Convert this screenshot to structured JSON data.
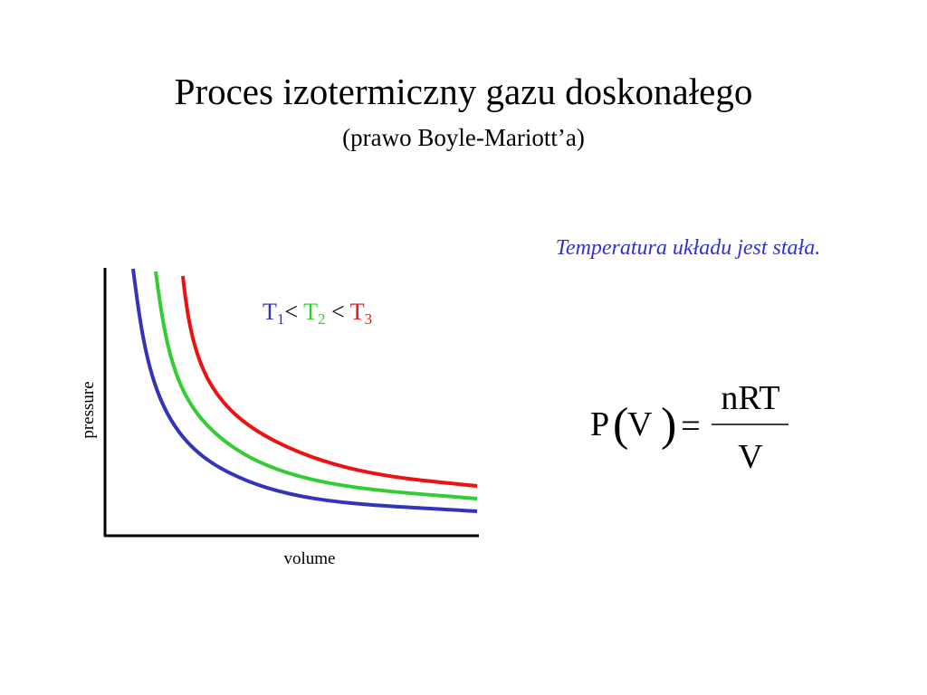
{
  "title": "Proces izotermiczny gazu doskonałego",
  "subtitle": "(prawo Boyle-Mariott’a)",
  "note": "Temperatura układu jest stała.",
  "plot": {
    "x_label": "volume",
    "y_label": "pressure",
    "relation": "<",
    "legend": [
      {
        "symbol": "T",
        "subscript": "1",
        "color": "#3333bb"
      },
      {
        "symbol": "T",
        "subscript": "2",
        "color": "#33cc33"
      },
      {
        "symbol": "T",
        "subscript": "3",
        "color": "#ee1111"
      }
    ]
  },
  "equation": {
    "lhs": "P",
    "open": "(",
    "arg": "V",
    "close": ")",
    "equals": "=",
    "numerator": "nRT",
    "denominator": "V"
  }
}
